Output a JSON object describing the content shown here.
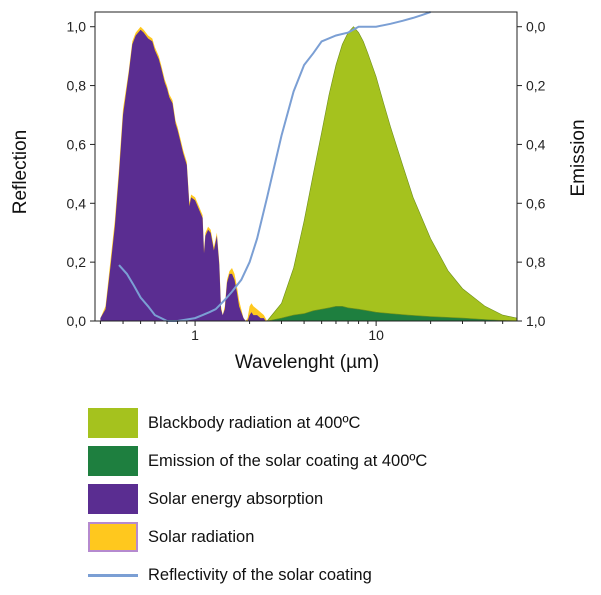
{
  "chart_data": {
    "type": "area",
    "xlabel": "Wavelenght (µm)",
    "ylabel": "Reflection",
    "y2label": "Emission",
    "xscale": "log",
    "xlim": [
      0.28,
      60
    ],
    "ylim": [
      0,
      1.05
    ],
    "y2lim": [
      1.0,
      -0.05
    ],
    "x_tick_labels": [
      "1",
      "10"
    ],
    "x_ticks": [
      1,
      10
    ],
    "y_ticks": [
      0,
      0.2,
      0.4,
      0.6,
      0.8,
      1.0
    ],
    "y_tick_labels": [
      "0,0",
      "0,2",
      "0,4",
      "0,6",
      "0,8",
      "1,0"
    ],
    "y2_ticks": [
      0,
      0.2,
      0.4,
      0.6,
      0.8,
      1.0
    ],
    "y2_tick_labels": [
      "0,0",
      "0,2",
      "0,4",
      "0,6",
      "0,8",
      "1,0"
    ],
    "grid": false,
    "legend_position": "bottom",
    "series": [
      {
        "name": "Solar radiation",
        "kind": "area",
        "color": "#FFC81E",
        "x": [
          0.3,
          0.32,
          0.34,
          0.36,
          0.38,
          0.4,
          0.43,
          0.45,
          0.47,
          0.5,
          0.52,
          0.55,
          0.58,
          0.6,
          0.63,
          0.65,
          0.68,
          0.7,
          0.72,
          0.75,
          0.78,
          0.8,
          0.83,
          0.86,
          0.9,
          0.93,
          0.95,
          1.0,
          1.05,
          1.1,
          1.12,
          1.14,
          1.18,
          1.22,
          1.27,
          1.32,
          1.36,
          1.39,
          1.42,
          1.46,
          1.5,
          1.55,
          1.6,
          1.65,
          1.7,
          1.75,
          1.8,
          1.85,
          1.9,
          1.95,
          2.0,
          2.05,
          2.1,
          2.2,
          2.3,
          2.4,
          2.45,
          2.5
        ],
        "y": [
          0.01,
          0.05,
          0.2,
          0.34,
          0.52,
          0.72,
          0.85,
          0.95,
          0.98,
          1.0,
          0.99,
          0.97,
          0.96,
          0.93,
          0.9,
          0.87,
          0.82,
          0.8,
          0.77,
          0.75,
          0.68,
          0.66,
          0.62,
          0.58,
          0.54,
          0.4,
          0.43,
          0.42,
          0.39,
          0.36,
          0.24,
          0.3,
          0.32,
          0.31,
          0.25,
          0.3,
          0.2,
          0.05,
          0.02,
          0.05,
          0.14,
          0.17,
          0.18,
          0.16,
          0.12,
          0.07,
          0.04,
          0.01,
          0.0,
          0.01,
          0.05,
          0.06,
          0.05,
          0.04,
          0.03,
          0.02,
          0.01,
          0.0
        ]
      },
      {
        "name": "Solar energy absorption",
        "kind": "area",
        "color": "#5A2D91",
        "x": [
          0.3,
          0.32,
          0.34,
          0.36,
          0.38,
          0.4,
          0.43,
          0.45,
          0.47,
          0.5,
          0.52,
          0.55,
          0.58,
          0.6,
          0.63,
          0.65,
          0.68,
          0.7,
          0.72,
          0.75,
          0.78,
          0.8,
          0.83,
          0.86,
          0.9,
          0.93,
          0.95,
          1.0,
          1.05,
          1.1,
          1.12,
          1.14,
          1.18,
          1.22,
          1.27,
          1.32,
          1.36,
          1.39,
          1.42,
          1.46,
          1.5,
          1.55,
          1.6,
          1.65,
          1.7,
          1.75,
          1.8,
          1.85,
          1.9,
          1.95,
          2.0,
          2.05,
          2.1,
          2.2,
          2.3,
          2.4,
          2.45,
          2.5
        ],
        "y": [
          0.01,
          0.04,
          0.18,
          0.32,
          0.5,
          0.7,
          0.84,
          0.94,
          0.97,
          0.99,
          0.98,
          0.96,
          0.95,
          0.92,
          0.89,
          0.86,
          0.81,
          0.79,
          0.76,
          0.74,
          0.67,
          0.65,
          0.61,
          0.57,
          0.53,
          0.39,
          0.42,
          0.41,
          0.38,
          0.35,
          0.23,
          0.29,
          0.31,
          0.3,
          0.24,
          0.29,
          0.19,
          0.04,
          0.02,
          0.04,
          0.13,
          0.16,
          0.16,
          0.14,
          0.1,
          0.05,
          0.03,
          0.01,
          0.0,
          0.0,
          0.02,
          0.03,
          0.02,
          0.02,
          0.01,
          0.01,
          0.0,
          0.0
        ]
      },
      {
        "name": "Blackbody radiation at 400ºC",
        "kind": "area",
        "axis": "right",
        "color": "#A5C21E",
        "x": [
          2.5,
          3.0,
          3.5,
          4.0,
          4.5,
          5.0,
          5.5,
          6.0,
          6.5,
          7.0,
          7.5,
          8.0,
          8.5,
          9.0,
          10.0,
          11.0,
          12.0,
          14.0,
          16.0,
          20.0,
          25.0,
          30.0,
          40.0,
          50.0,
          60.0
        ],
        "y": [
          1.0,
          0.94,
          0.82,
          0.66,
          0.5,
          0.36,
          0.23,
          0.13,
          0.06,
          0.02,
          0.0,
          0.02,
          0.05,
          0.09,
          0.17,
          0.26,
          0.34,
          0.47,
          0.58,
          0.72,
          0.83,
          0.89,
          0.95,
          0.98,
          0.99
        ]
      },
      {
        "name": "Emission of the solar coating at 400ºC",
        "kind": "area",
        "axis": "right",
        "color": "#1E7F3F",
        "x": [
          2.5,
          3.0,
          3.5,
          4.0,
          4.5,
          5.0,
          5.5,
          6.0,
          6.5,
          7.0,
          8.0,
          9.0,
          10.0,
          12.0,
          15.0,
          20.0,
          30.0,
          40.0,
          60.0
        ],
        "y": [
          1.0,
          0.99,
          0.98,
          0.975,
          0.965,
          0.96,
          0.955,
          0.95,
          0.95,
          0.955,
          0.96,
          0.965,
          0.97,
          0.975,
          0.98,
          0.985,
          0.99,
          0.995,
          1.0
        ]
      },
      {
        "name": "Reflectivity of the solar coating",
        "kind": "line",
        "color": "#7B9FD4",
        "x": [
          0.38,
          0.42,
          0.46,
          0.5,
          0.55,
          0.6,
          0.65,
          0.7,
          0.8,
          0.9,
          1.0,
          1.1,
          1.2,
          1.3,
          1.4,
          1.5,
          1.6,
          1.8,
          2.0,
          2.2,
          2.5,
          2.8,
          3.0,
          3.5,
          4.0,
          4.5,
          5.0,
          6.0,
          7.0,
          8.0,
          10.0,
          12.0,
          14.0,
          16.0,
          18.0,
          20.0
        ],
        "y": [
          0.19,
          0.16,
          0.12,
          0.08,
          0.05,
          0.02,
          0.01,
          0.0,
          0.0,
          0.005,
          0.01,
          0.02,
          0.03,
          0.04,
          0.06,
          0.08,
          0.1,
          0.14,
          0.2,
          0.28,
          0.42,
          0.55,
          0.63,
          0.78,
          0.87,
          0.91,
          0.95,
          0.97,
          0.98,
          1.0,
          1.0,
          1.01,
          1.02,
          1.03,
          1.04,
          1.05
        ]
      }
    ]
  },
  "legend": {
    "items": [
      {
        "label": "Blackbody radiation at 400ºC",
        "color": "#A5C21E",
        "border": "#A5C21E",
        "kind": "box"
      },
      {
        "label": "Emission of the solar coating at 400ºC",
        "color": "#1E7F3F",
        "border": "#1E7F3F",
        "kind": "box"
      },
      {
        "label": "Solar energy absorption",
        "color": "#5A2D91",
        "border": "#5A2D91",
        "kind": "box"
      },
      {
        "label": "Solar radiation",
        "color": "#FFC81E",
        "border": "#B58ACF",
        "kind": "box"
      },
      {
        "label": "Reflectivity of the solar coating",
        "color": "#7B9FD4",
        "border": "#7B9FD4",
        "kind": "line"
      }
    ]
  }
}
